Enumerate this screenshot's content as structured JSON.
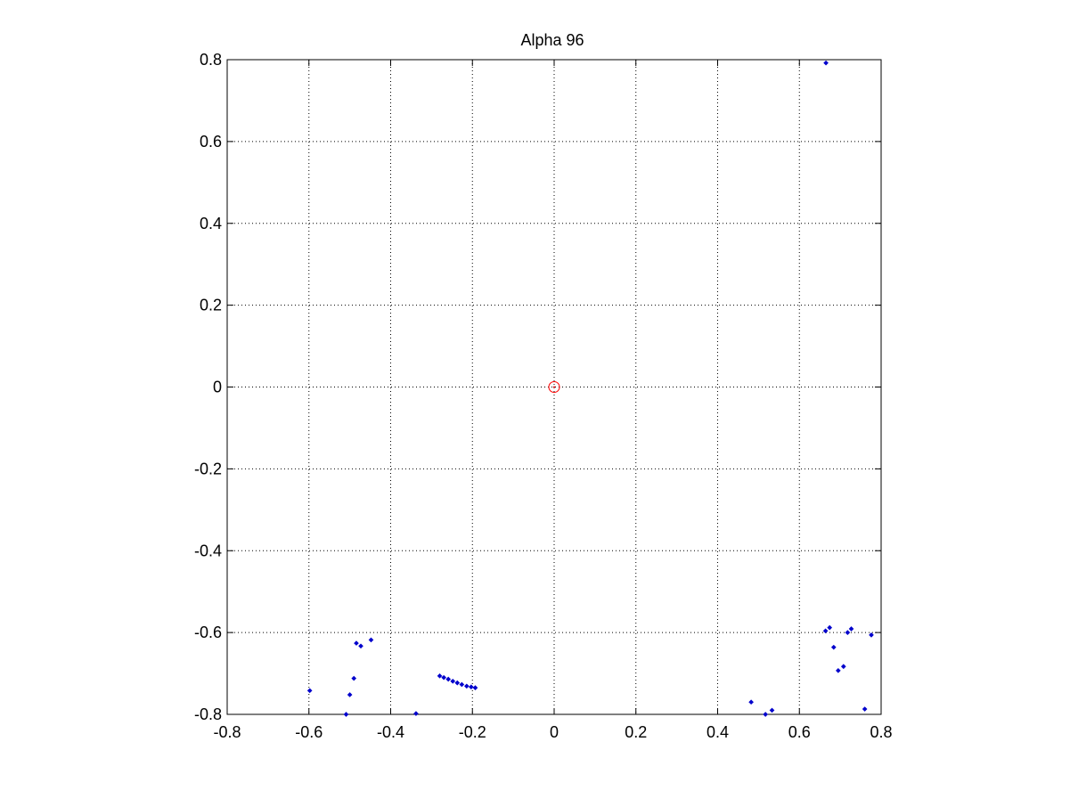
{
  "chart_data": {
    "type": "scatter",
    "title": "Alpha 96",
    "xlabel": "",
    "ylabel": "",
    "xlim": [
      -0.8,
      0.8
    ],
    "ylim": [
      -0.8,
      0.8
    ],
    "grid": true,
    "xticks": [
      "-0.8",
      "-0.6",
      "-0.4",
      "-0.2",
      "0",
      "0.2",
      "0.4",
      "0.6",
      "0.8"
    ],
    "yticks": [
      "0.8",
      "0.6",
      "0.4",
      "0.2",
      "0",
      "-0.2",
      "-0.4",
      "-0.6",
      "-0.8"
    ],
    "xtick_values": [
      -0.8,
      -0.6,
      -0.4,
      -0.2,
      0,
      0.2,
      0.4,
      0.6,
      0.8
    ],
    "ytick_values": [
      0.8,
      0.6,
      0.4,
      0.2,
      0,
      -0.2,
      -0.4,
      -0.6,
      -0.8
    ],
    "series": [
      {
        "marker": "point",
        "color": "#0000cc",
        "points": [
          [
            0.665,
            0.792
          ],
          [
            -0.598,
            -0.742
          ],
          [
            -0.509,
            -0.8
          ],
          [
            -0.5,
            -0.752
          ],
          [
            -0.49,
            -0.712
          ],
          [
            -0.484,
            -0.626
          ],
          [
            -0.473,
            -0.633
          ],
          [
            -0.448,
            -0.618
          ],
          [
            -0.338,
            -0.798
          ],
          [
            -0.28,
            -0.706
          ],
          [
            -0.27,
            -0.71
          ],
          [
            -0.259,
            -0.714
          ],
          [
            -0.248,
            -0.719
          ],
          [
            -0.237,
            -0.723
          ],
          [
            -0.226,
            -0.727
          ],
          [
            -0.214,
            -0.731
          ],
          [
            -0.203,
            -0.733
          ],
          [
            -0.193,
            -0.735
          ],
          [
            0.482,
            -0.77
          ],
          [
            0.517,
            -0.8
          ],
          [
            0.533,
            -0.79
          ],
          [
            0.664,
            -0.596
          ],
          [
            0.674,
            -0.588
          ],
          [
            0.684,
            -0.636
          ],
          [
            0.695,
            -0.693
          ],
          [
            0.708,
            -0.683
          ],
          [
            0.718,
            -0.6
          ],
          [
            0.727,
            -0.591
          ],
          [
            0.76,
            -0.787
          ],
          [
            0.776,
            -0.606
          ]
        ]
      },
      {
        "marker": "circle",
        "color": "#ff0000",
        "points": [
          [
            0,
            0
          ]
        ]
      }
    ]
  }
}
